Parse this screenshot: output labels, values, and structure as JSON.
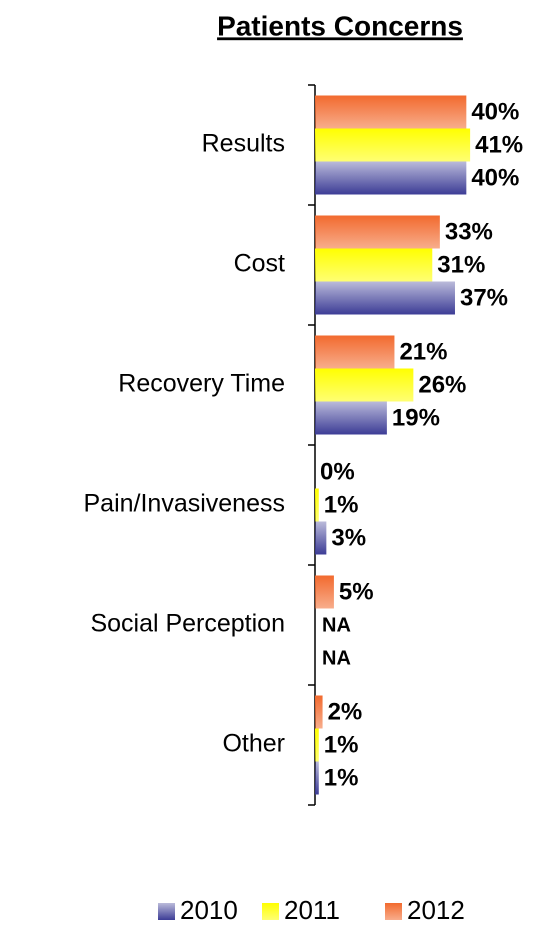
{
  "chart_data": {
    "type": "hbar",
    "title": "Patients Concerns",
    "categories": [
      "Results",
      "Cost",
      "Recovery Time",
      "Pain/Invasiveness",
      "Social Perception",
      "Other"
    ],
    "series": [
      {
        "name": "2010",
        "color": "#3c3c96",
        "values": [
          40,
          37,
          19,
          3,
          null,
          1
        ],
        "value_labels": [
          "40%",
          "37%",
          "19%",
          "3%",
          "NA",
          "1%"
        ]
      },
      {
        "name": "2011",
        "color": "#ffff00",
        "values": [
          41,
          31,
          26,
          1,
          null,
          1
        ],
        "value_labels": [
          "41%",
          "31%",
          "26%",
          "1%",
          "NA",
          "1%"
        ]
      },
      {
        "name": "2012",
        "color": "#f26a2e",
        "values": [
          40,
          33,
          21,
          0,
          5,
          2
        ],
        "value_labels": [
          "40%",
          "33%",
          "21%",
          "0%",
          "5%",
          "2%"
        ]
      }
    ],
    "xlim": [
      0,
      60
    ],
    "legend": "bottom"
  }
}
